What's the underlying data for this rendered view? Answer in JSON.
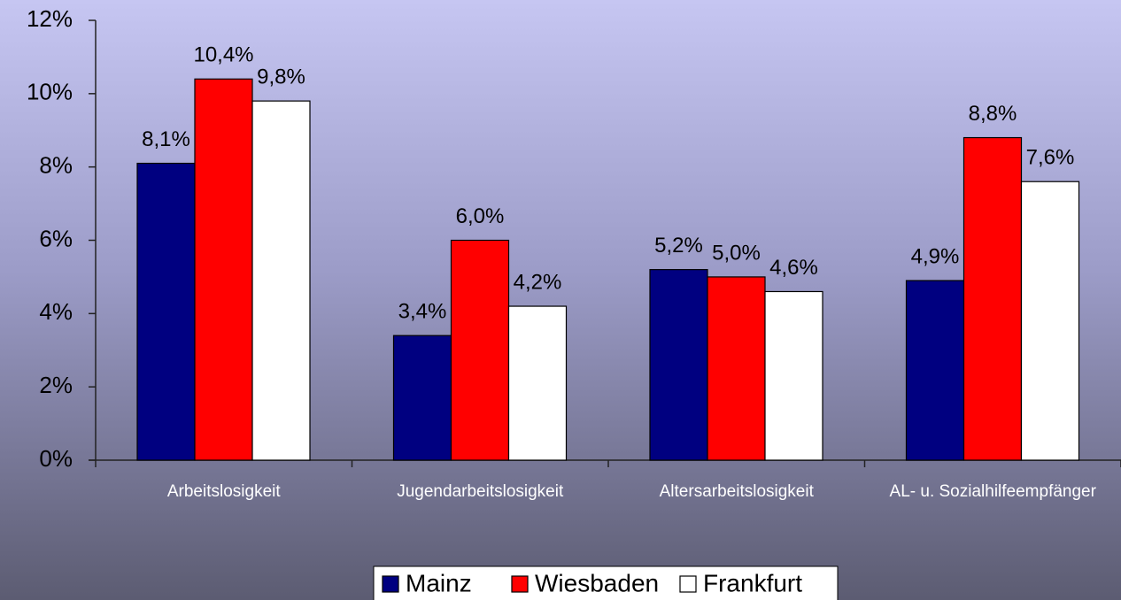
{
  "chart_data": {
    "type": "bar",
    "categories": [
      "Arbeitslosigkeit",
      "Jugendarbeitslosigkeit",
      "Altersarbeitslosigkeit",
      "AL- u. Sozialhilfeempfänger"
    ],
    "series": [
      {
        "name": "Mainz",
        "color": "#000080",
        "values": [
          8.1,
          3.4,
          5.2,
          4.9
        ],
        "value_labels": [
          "8,1%",
          "3,4%",
          "5,2%",
          "4,9%"
        ]
      },
      {
        "name": "Wiesbaden",
        "color": "#ff0000",
        "values": [
          10.4,
          6.0,
          5.0,
          8.8
        ],
        "value_labels": [
          "10,4%",
          "6,0%",
          "5,0%",
          "8,8%"
        ]
      },
      {
        "name": "Frankfurt",
        "color": "#ffffff",
        "values": [
          9.8,
          4.2,
          4.6,
          7.6
        ],
        "value_labels": [
          "9,8%",
          "4,2%",
          "4,6%",
          "7,6%"
        ]
      }
    ],
    "ylim": [
      0,
      12
    ],
    "yticks": [
      {
        "value": 0,
        "label": "0%"
      },
      {
        "value": 2,
        "label": "2%"
      },
      {
        "value": 4,
        "label": "4%"
      },
      {
        "value": 6,
        "label": "6%"
      },
      {
        "value": 8,
        "label": "8%"
      },
      {
        "value": 10,
        "label": "10%"
      },
      {
        "value": 12,
        "label": "12%"
      }
    ],
    "grid": false,
    "legend": "bottom"
  }
}
